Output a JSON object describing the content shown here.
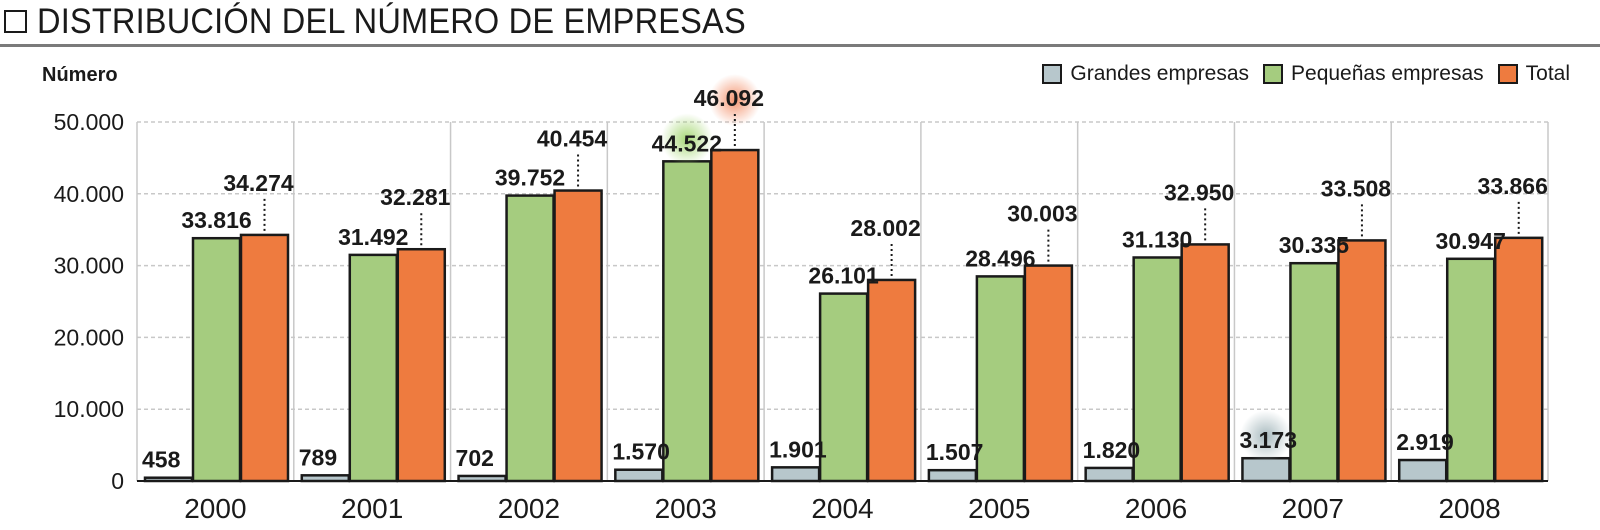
{
  "header": {
    "title": "DISTRIBUCIÓN DEL NÚMERO DE EMPRESAS"
  },
  "legend": {
    "items": [
      {
        "label": "Grandes empresas",
        "color": "#b7c7cc"
      },
      {
        "label": "Pequeñas empresas",
        "color": "#a5cc7f"
      },
      {
        "label": "Total",
        "color": "#ee7b3f"
      }
    ]
  },
  "colors": {
    "grandes": "#b7c7cc",
    "pequenas": "#a5cc7f",
    "total": "#ee7b3f",
    "grid": "#c8c8c8",
    "axis_text": "#1a1a1a"
  },
  "chart_data": {
    "type": "bar",
    "title": "DISTRIBUCIÓN DEL NÚMERO DE EMPRESAS",
    "xlabel": "",
    "ylabel": "Número",
    "ylim": [
      0,
      50000
    ],
    "yticks": [
      0,
      10000,
      20000,
      30000,
      40000,
      50000
    ],
    "ytick_labels": [
      "0",
      "10.000",
      "20.000",
      "30.000",
      "40.000",
      "50.000"
    ],
    "grid": true,
    "legend_position": "top-right",
    "categories": [
      "2000",
      "2001",
      "2002",
      "2003",
      "2004",
      "2005",
      "2006",
      "2007",
      "2008"
    ],
    "series": [
      {
        "name": "Grandes empresas",
        "values": [
          458,
          789,
          702,
          1570,
          1901,
          1507,
          1820,
          3173,
          2919
        ],
        "labels": [
          "458",
          "789",
          "702",
          "1.570",
          "1.901",
          "1.507",
          "1.820",
          "3.173",
          "2.919"
        ]
      },
      {
        "name": "Pequeñas empresas",
        "values": [
          33816,
          31492,
          39752,
          44522,
          26101,
          28496,
          31130,
          30335,
          30947
        ],
        "labels": [
          "33.816",
          "31.492",
          "39.752",
          "44.522",
          "26.101",
          "28.496",
          "31.130",
          "30.335",
          "30.947"
        ]
      },
      {
        "name": "Total",
        "values": [
          34274,
          32281,
          40454,
          46092,
          28002,
          30003,
          32950,
          33508,
          33866
        ],
        "labels": [
          "34.274",
          "32.281",
          "40.454",
          "46.092",
          "28.002",
          "30.003",
          "32.950",
          "33.508",
          "33.866"
        ]
      }
    ],
    "highlights": [
      {
        "series": "Pequeñas empresas",
        "category": "2003",
        "note": "maximum"
      },
      {
        "series": "Total",
        "category": "2003",
        "note": "maximum"
      },
      {
        "series": "Grandes empresas",
        "category": "2007",
        "note": "maximum"
      }
    ]
  }
}
